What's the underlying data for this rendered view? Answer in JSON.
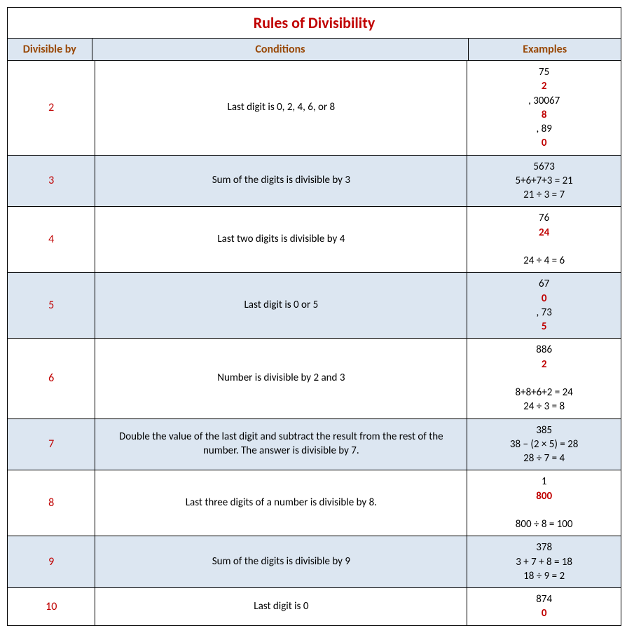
{
  "title": "Rules of Divisibility",
  "headers": {
    "divisor": "Divisible by",
    "condition": "Conditions",
    "example": "Examples"
  },
  "colors": {
    "title_color": "#c00000",
    "header_color": "#984806",
    "alt_row_bg": "#dce6f1",
    "highlight_color": "#c00000",
    "border_color": "#000000",
    "text_color": "#000000"
  },
  "rows": [
    {
      "divisor": "2",
      "condition": "Last digit is 0, 2, 4, 6, or 8",
      "example_html": "75<span class='red-digit'>2</span>, 30067<span class='red-digit'>8</span>, 89<span class='red-digit'>0</span>",
      "alt": false
    },
    {
      "divisor": "3",
      "condition": "Sum of the digits is divisible by 3",
      "example_html": "5673<br>5+6+7+3 = 21<br>21 ÷ 3 = 7",
      "alt": true
    },
    {
      "divisor": "4",
      "condition": "Last two digits is divisible by 4",
      "example_html": "76<span class='red-digit'>24</span><br>24 ÷ 4 = 6",
      "alt": false
    },
    {
      "divisor": "5",
      "condition": "Last digit is 0 or 5",
      "example_html": "67<span class='red-digit'>0</span>, 73<span class='red-digit'>5</span>",
      "alt": true
    },
    {
      "divisor": "6",
      "condition": "Number is divisible by 2 and 3",
      "example_html": "886<span class='red-digit'>2</span><br>8+8+6+2 = 24<br>24 ÷ 3 = 8",
      "alt": false
    },
    {
      "divisor": "7",
      "condition": "Double the value of the last digit and subtract the result from the rest of the number. The answer is divisible by 7.",
      "example_html": "385<br>38 − (2 × 5) = 28<br>28 ÷ 7 = 4",
      "alt": true
    },
    {
      "divisor": "8",
      "condition": "Last three digits of a number is divisible by 8.",
      "example_html": "1<span class='red-digit'>800</span><br>800 ÷ 8 = 100",
      "alt": false
    },
    {
      "divisor": "9",
      "condition": "Sum of the digits is divisible by 9",
      "example_html": "378<br>3 + 7 + 8 = 18<br>18 ÷ 9 = 2",
      "alt": true
    },
    {
      "divisor": "10",
      "condition": "Last digit is 0",
      "example_html": "874<span class='red-digit'>0</span>",
      "alt": false
    }
  ]
}
